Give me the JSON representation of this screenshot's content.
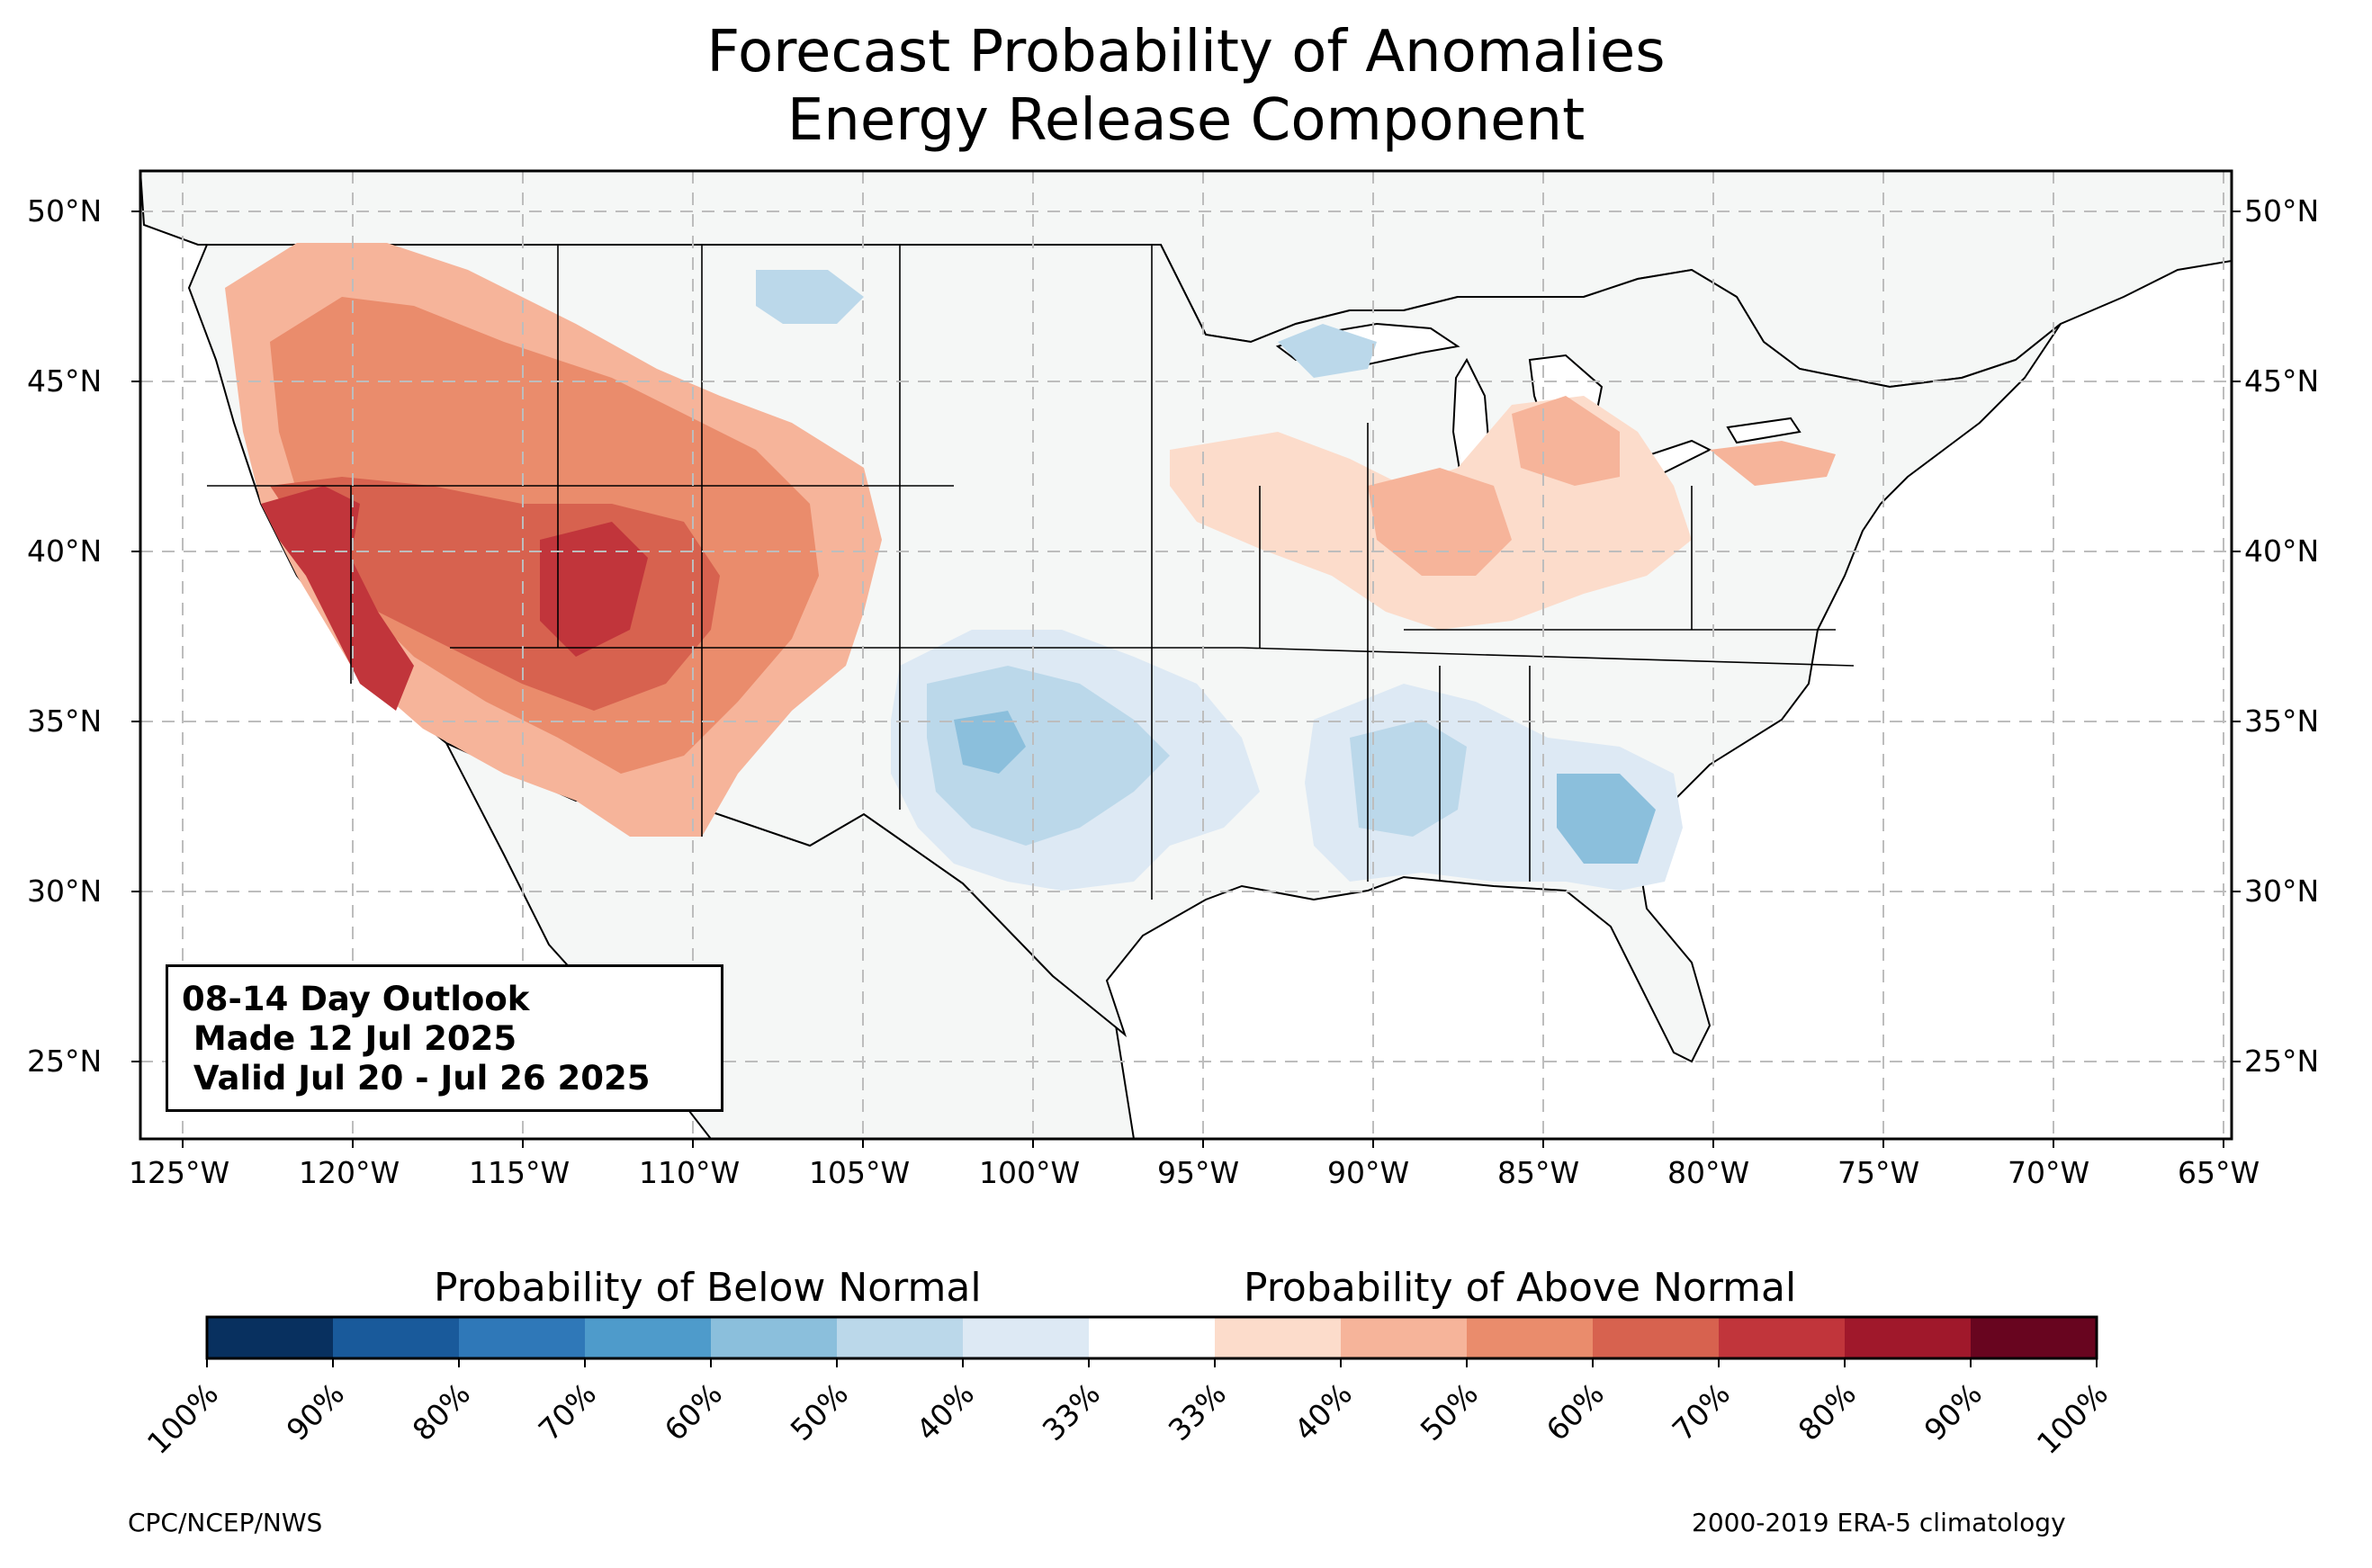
{
  "title": {
    "line1": "Forecast Probability of Anomalies",
    "line2": "Energy Release Component"
  },
  "outlook": {
    "line1": "08-14 Day Outlook",
    "line2": " Made 12 Jul 2025",
    "line3": " Valid Jul 20 - Jul 26 2025"
  },
  "map": {
    "lon_range": [
      -126.3,
      -64.9
    ],
    "lat_range": [
      22.7,
      51.2
    ],
    "lon_ticks": [
      "125°W",
      "120°W",
      "115°W",
      "110°W",
      "105°W",
      "100°W",
      "95°W",
      "90°W",
      "85°W",
      "80°W",
      "75°W",
      "70°W",
      "65°W"
    ],
    "lat_ticks": [
      "25°N",
      "30°N",
      "35°N",
      "40°N",
      "45°N",
      "50°N"
    ],
    "gridlines": true,
    "land_color": "#f5f7f6",
    "anomaly_regions": [
      {
        "label": "Northwest / Great Basin / Rockies / Southwest",
        "category": "above",
        "max_prob": "70%"
      },
      {
        "label": "Midwest / Ohio Valley",
        "category": "above",
        "max_prob": "50%"
      },
      {
        "label": "Southern Plains",
        "category": "below",
        "max_prob": "60%"
      },
      {
        "label": "Southeast",
        "category": "below",
        "max_prob": "60%"
      },
      {
        "label": "Northern Plains / Upper Midwest",
        "category": "below",
        "max_prob": "40%"
      }
    ]
  },
  "colorbar": {
    "below_label": "Probability of Below Normal",
    "above_label": "Probability of Above Normal",
    "tick_labels": [
      "100%",
      "90%",
      "80%",
      "70%",
      "60%",
      "50%",
      "40%",
      "33%",
      "33%",
      "40%",
      "50%",
      "60%",
      "70%",
      "80%",
      "90%",
      "100%"
    ],
    "colors": [
      "#08305f",
      "#195a9b",
      "#2f78b8",
      "#4e9bcb",
      "#8bbfdc",
      "#bbd8ea",
      "#dde9f4",
      "#ffffff",
      "#fcdccb",
      "#f6b49a",
      "#ea8c6c",
      "#d7624f",
      "#c1353b",
      "#a0182b",
      "#68051f"
    ]
  },
  "credits": {
    "left": "CPC/NCEP/NWS",
    "right": "2000-2019 ERA-5 climatology"
  }
}
